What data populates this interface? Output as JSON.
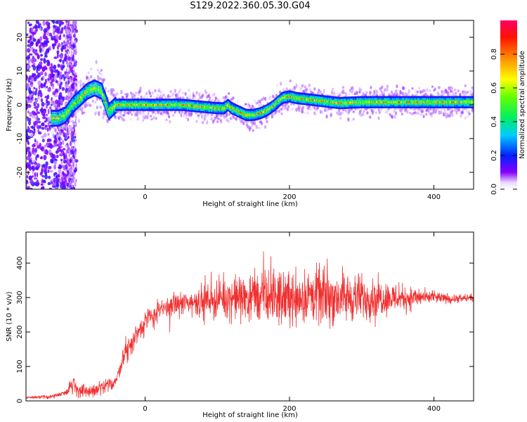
{
  "title": "S129.2022.360.05.30.G04",
  "chart_data": [
    {
      "type": "heatmap",
      "xlabel": "Height of straight line (km)",
      "ylabel": "Frequency (Hz)",
      "xlim": [
        -165,
        455
      ],
      "ylim": [
        -25,
        25
      ],
      "xticks": [
        0,
        200,
        400
      ],
      "yticks": [
        -20,
        -10,
        0,
        10,
        20
      ],
      "colorbar": {
        "label": "Normalized spectral amplitude",
        "range": [
          0,
          1
        ],
        "ticks": [
          "0.0",
          "0.2",
          "0.4",
          "0.6",
          "0.8"
        ]
      },
      "ridge": [
        [
          -160,
          -8
        ],
        [
          -150,
          -7
        ],
        [
          -140,
          -6
        ],
        [
          -130,
          -4
        ],
        [
          -120,
          -4
        ],
        [
          -110,
          -3
        ],
        [
          -100,
          0
        ],
        [
          -90,
          2
        ],
        [
          -80,
          4
        ],
        [
          -70,
          5
        ],
        [
          -60,
          4
        ],
        [
          -55,
          1
        ],
        [
          -50,
          -2
        ],
        [
          -45,
          -1
        ],
        [
          -40,
          0
        ],
        [
          -20,
          0
        ],
        [
          0,
          0
        ],
        [
          50,
          0
        ],
        [
          100,
          -1
        ],
        [
          110,
          -1
        ],
        [
          115,
          0
        ],
        [
          120,
          -1
        ],
        [
          130,
          -2
        ],
        [
          140,
          -3
        ],
        [
          150,
          -3
        ],
        [
          160,
          -2.5
        ],
        [
          170,
          -1.5
        ],
        [
          180,
          0
        ],
        [
          190,
          2
        ],
        [
          200,
          2.5
        ],
        [
          210,
          2
        ],
        [
          230,
          1.5
        ],
        [
          250,
          1
        ],
        [
          270,
          0.5
        ],
        [
          300,
          0.8
        ],
        [
          350,
          0.8
        ],
        [
          400,
          0.8
        ],
        [
          455,
          0.8
        ]
      ]
    },
    {
      "type": "line",
      "xlabel": "Height of straight line (km)",
      "ylabel": "SNR (10 * v/v)",
      "xlim": [
        -165,
        455
      ],
      "ylim": [
        0,
        490
      ],
      "xticks": [
        0,
        200,
        400
      ],
      "yticks": [
        0,
        100,
        200,
        300,
        400
      ],
      "color": "#f03030",
      "trend": [
        [
          -165,
          10
        ],
        [
          -130,
          12
        ],
        [
          -110,
          25
        ],
        [
          -100,
          50
        ],
        [
          -90,
          25
        ],
        [
          -70,
          30
        ],
        [
          -50,
          45
        ],
        [
          -40,
          60
        ],
        [
          -30,
          130
        ],
        [
          -20,
          160
        ],
        [
          -10,
          200
        ],
        [
          0,
          230
        ],
        [
          20,
          260
        ],
        [
          40,
          280
        ],
        [
          80,
          290
        ],
        [
          120,
          300
        ],
        [
          160,
          300
        ],
        [
          200,
          300
        ],
        [
          240,
          305
        ],
        [
          280,
          300
        ],
        [
          320,
          300
        ],
        [
          360,
          300
        ],
        [
          400,
          300
        ],
        [
          430,
          295
        ],
        [
          455,
          300
        ]
      ],
      "noise_amplitude": [
        [
          -165,
          5
        ],
        [
          -110,
          10
        ],
        [
          -100,
          40
        ],
        [
          -40,
          25
        ],
        [
          -20,
          60
        ],
        [
          0,
          50
        ],
        [
          50,
          50
        ],
        [
          100,
          80
        ],
        [
          150,
          110
        ],
        [
          200,
          120
        ],
        [
          250,
          120
        ],
        [
          300,
          100
        ],
        [
          350,
          60
        ],
        [
          400,
          25
        ],
        [
          455,
          15
        ]
      ]
    }
  ]
}
